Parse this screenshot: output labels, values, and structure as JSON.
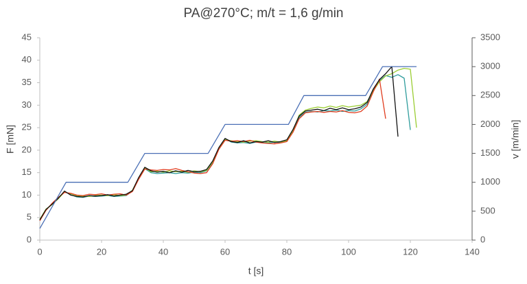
{
  "chart_data": {
    "type": "line",
    "title": "PA@270°C; m/t = 1,6 g/min",
    "xlabel": "t [s]",
    "ylabel": "F [mN]",
    "y2label": "v [m/min]",
    "xlim": [
      0,
      140
    ],
    "xticks": [
      0,
      20,
      40,
      60,
      80,
      100,
      120,
      140
    ],
    "ylim": [
      0,
      45
    ],
    "yticks": [
      0,
      5,
      10,
      15,
      20,
      25,
      30,
      35,
      40,
      45
    ],
    "y2lim": [
      0,
      3500
    ],
    "y2ticks": [
      0,
      500,
      1000,
      1500,
      2000,
      2500,
      3000,
      3500
    ],
    "grid": false,
    "x": [
      0,
      2,
      4,
      6,
      8,
      10,
      12,
      14,
      16,
      18,
      20,
      22,
      24,
      26,
      28,
      30,
      32,
      34,
      36,
      38,
      40,
      42,
      44,
      46,
      48,
      50,
      52,
      54,
      56,
      58,
      60,
      62,
      64,
      66,
      68,
      70,
      72,
      74,
      76,
      78,
      80,
      82,
      84,
      86,
      88,
      90,
      92,
      94,
      96,
      98,
      100,
      102,
      104,
      106,
      108,
      110,
      112,
      114,
      116,
      118,
      120,
      122
    ],
    "series": [
      {
        "color": "#2e9c9c",
        "values": [
          4.4,
          6.7,
          8.1,
          9.4,
          10.8,
          10.1,
          9.6,
          9.5,
          9.8,
          9.7,
          9.8,
          9.9,
          9.7,
          9.8,
          9.9,
          10.9,
          13.6,
          15.9,
          15.0,
          14.8,
          14.9,
          15.0,
          14.8,
          15.0,
          14.9,
          15.1,
          15.0,
          15.4,
          17.2,
          20.3,
          22.5,
          21.8,
          21.6,
          21.7,
          21.5,
          21.8,
          21.7,
          21.6,
          21.8,
          21.7,
          22.0,
          24.2,
          27.3,
          28.4,
          28.6,
          28.5,
          28.8,
          28.7,
          28.9,
          28.6,
          28.8,
          28.7,
          29.2,
          30.2,
          33.4,
          35.4,
          36.6,
          36.2,
          36.8,
          36.0,
          24.5,
          null
        ]
      },
      {
        "color": "#9acd32",
        "values": [
          4.6,
          6.9,
          7.9,
          9.2,
          10.7,
          10.3,
          9.9,
          9.8,
          9.7,
          9.9,
          10.0,
          9.9,
          10.1,
          9.9,
          10.0,
          11.1,
          13.7,
          16.1,
          15.2,
          15.3,
          15.1,
          15.4,
          15.2,
          15.3,
          15.1,
          15.4,
          15.2,
          15.5,
          17.4,
          20.4,
          22.3,
          22.1,
          21.9,
          21.8,
          22.0,
          22.1,
          21.9,
          21.8,
          22.0,
          21.8,
          22.1,
          24.4,
          27.8,
          28.9,
          29.3,
          29.6,
          29.4,
          29.8,
          29.5,
          29.9,
          29.6,
          29.8,
          30.0,
          30.8,
          33.2,
          35.2,
          36.5,
          37.0,
          37.8,
          38.2,
          38.0,
          25.0
        ]
      },
      {
        "color": "#e03c1e",
        "values": [
          4.3,
          6.6,
          8.2,
          9.5,
          10.6,
          10.4,
          10.0,
          9.9,
          10.2,
          10.1,
          10.3,
          10.0,
          10.2,
          10.3,
          10.0,
          10.8,
          13.5,
          15.8,
          15.6,
          15.5,
          15.7,
          15.6,
          15.9,
          15.5,
          15.2,
          14.9,
          14.8,
          15.0,
          17.0,
          20.2,
          22.2,
          22.0,
          22.1,
          21.9,
          22.2,
          21.8,
          21.6,
          21.5,
          21.4,
          21.6,
          21.9,
          24.0,
          27.0,
          28.3,
          28.5,
          28.6,
          28.4,
          28.6,
          28.5,
          28.8,
          28.4,
          28.3,
          28.6,
          29.8,
          33.0,
          35.8,
          27.0,
          null,
          null,
          null,
          null,
          null
        ]
      },
      {
        "color": "#111111",
        "values": [
          4.5,
          6.8,
          8.0,
          9.3,
          10.9,
          10.0,
          9.7,
          9.6,
          9.9,
          9.8,
          9.9,
          10.1,
          9.8,
          10.0,
          10.2,
          11.0,
          13.9,
          16.2,
          15.4,
          15.1,
          15.3,
          15.0,
          15.4,
          15.1,
          15.5,
          15.2,
          15.3,
          15.7,
          17.6,
          20.6,
          22.6,
          21.9,
          21.7,
          22.1,
          21.6,
          21.9,
          21.8,
          22.1,
          21.7,
          21.9,
          22.3,
          24.6,
          27.6,
          28.7,
          28.9,
          29.1,
          28.8,
          29.3,
          29.0,
          29.4,
          29.0,
          29.2,
          29.6,
          30.6,
          33.6,
          35.7,
          37.0,
          38.6,
          23.0,
          null,
          null,
          null
        ]
      },
      {
        "color": "#4a6fb5",
        "axis": "y2",
        "x": [
          0,
          8.5,
          28.5,
          34,
          54.5,
          60,
          80.5,
          85.5,
          105.5,
          111,
          122
        ],
        "values": [
          200,
          1000,
          1000,
          1500,
          1500,
          2000,
          2000,
          2500,
          2500,
          3000,
          3000
        ]
      }
    ]
  }
}
